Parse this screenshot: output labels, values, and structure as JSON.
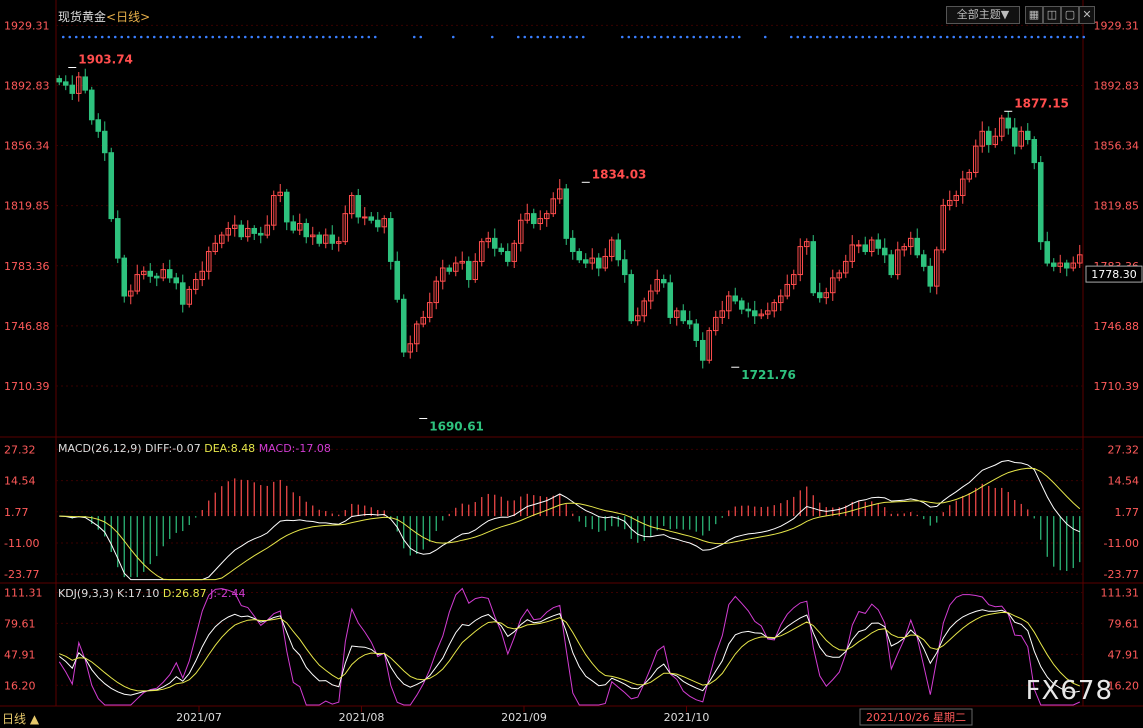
{
  "header": {
    "title": "现货黄金",
    "period": "<日线>"
  },
  "toolbar": {
    "theme_label": "全部主题▼",
    "icons": [
      "grid-icon",
      "chart-icon",
      "expand-icon",
      "close-icon"
    ]
  },
  "colors": {
    "up": "#ff4d4d",
    "down": "#2ec27e",
    "price_axis": "#ff5a5a",
    "dif": "#ffffff",
    "dea": "#e6e64a",
    "macd": "#d23cd2",
    "k": "#ffffff",
    "d": "#e6e64a",
    "j": "#d23cd2",
    "grid": "#3a0000",
    "dots": "#3a7fff"
  },
  "current_price": "1778.30",
  "footer": {
    "tab_label": "日线 ▲",
    "date_label": "2021/10/26 星期二",
    "watermark": "FX678"
  },
  "chart_data": [
    {
      "type": "candlestick",
      "title": "现货黄金<日线>",
      "y_ticks": [
        "1929.31",
        "1892.83",
        "1856.34",
        "1819.85",
        "1783.36",
        "1746.88",
        "1710.39"
      ],
      "ylim": [
        1680,
        1935
      ],
      "x_ticks": [
        "2021/07",
        "2021/08",
        "2021/09",
        "2021/10"
      ],
      "annotations": [
        {
          "label": "1903.74",
          "value": 1903.74,
          "kind": "high"
        },
        {
          "label": "1690.61",
          "value": 1690.61,
          "kind": "low"
        },
        {
          "label": "1834.03",
          "value": 1834.03,
          "kind": "high"
        },
        {
          "label": "1721.76",
          "value": 1721.76,
          "kind": "low"
        },
        {
          "label": "1877.15",
          "value": 1877.15,
          "kind": "high"
        }
      ],
      "close": [
        1895,
        1893,
        1888,
        1898,
        1890,
        1872,
        1865,
        1852,
        1812,
        1788,
        1765,
        1768,
        1778,
        1780,
        1777,
        1776,
        1781,
        1776,
        1773,
        1760,
        1769,
        1775,
        1780,
        1792,
        1797,
        1802,
        1806,
        1808,
        1801,
        1806,
        1803,
        1802,
        1808,
        1826,
        1828,
        1810,
        1805,
        1809,
        1801,
        1802,
        1797,
        1802,
        1797,
        1798,
        1815,
        1826,
        1813,
        1813,
        1811,
        1807,
        1812,
        1786,
        1763,
        1731,
        1736,
        1748,
        1752,
        1761,
        1774,
        1782,
        1780,
        1785,
        1786,
        1775,
        1786,
        1798,
        1800,
        1794,
        1792,
        1786,
        1797,
        1811,
        1815,
        1809,
        1812,
        1815,
        1824,
        1830,
        1800,
        1792,
        1787,
        1785,
        1788,
        1782,
        1789,
        1799,
        1787,
        1778,
        1750,
        1753,
        1762,
        1768,
        1775,
        1773,
        1752,
        1756,
        1750,
        1748,
        1738,
        1726,
        1744,
        1752,
        1756,
        1765,
        1762,
        1757,
        1756,
        1753,
        1754,
        1756,
        1761,
        1765,
        1772,
        1778,
        1795,
        1798,
        1767,
        1764,
        1767,
        1776,
        1779,
        1786,
        1796,
        1796,
        1792,
        1799,
        1794,
        1790,
        1778,
        1793,
        1795,
        1800,
        1790,
        1783,
        1771,
        1793,
        1820,
        1823,
        1826,
        1836,
        1840,
        1856,
        1865,
        1857,
        1862,
        1873,
        1867,
        1856,
        1865,
        1860,
        1846,
        1798,
        1785,
        1783,
        1785,
        1782,
        1785,
        1790
      ],
      "open": [
        1897,
        1895,
        1893,
        1888,
        1898,
        1890,
        1872,
        1865,
        1852,
        1812,
        1788,
        1765,
        1768,
        1778,
        1780,
        1777,
        1776,
        1781,
        1776,
        1773,
        1760,
        1769,
        1775,
        1780,
        1792,
        1797,
        1802,
        1806,
        1808,
        1801,
        1806,
        1803,
        1802,
        1808,
        1826,
        1828,
        1810,
        1805,
        1809,
        1801,
        1802,
        1797,
        1802,
        1797,
        1798,
        1815,
        1826,
        1813,
        1813,
        1811,
        1807,
        1812,
        1786,
        1763,
        1731,
        1736,
        1748,
        1752,
        1761,
        1774,
        1782,
        1780,
        1785,
        1786,
        1775,
        1786,
        1798,
        1800,
        1794,
        1792,
        1786,
        1797,
        1811,
        1815,
        1809,
        1812,
        1815,
        1824,
        1830,
        1800,
        1792,
        1787,
        1785,
        1788,
        1782,
        1789,
        1799,
        1787,
        1778,
        1750,
        1753,
        1762,
        1768,
        1775,
        1773,
        1752,
        1756,
        1750,
        1748,
        1738,
        1726,
        1744,
        1752,
        1756,
        1765,
        1762,
        1757,
        1756,
        1753,
        1754,
        1756,
        1761,
        1765,
        1772,
        1778,
        1795,
        1798,
        1767,
        1764,
        1767,
        1776,
        1779,
        1786,
        1796,
        1796,
        1792,
        1799,
        1794,
        1790,
        1778,
        1793,
        1795,
        1800,
        1790,
        1783,
        1771,
        1793,
        1820,
        1823,
        1826,
        1836,
        1840,
        1856,
        1865,
        1857,
        1862,
        1873,
        1867,
        1856,
        1865,
        1860,
        1846,
        1798,
        1785,
        1783,
        1785,
        1782,
        1785
      ]
    },
    {
      "type": "line",
      "title": "MACD(26,12,9)",
      "series_labels": {
        "dif": "DIFF:-0.07",
        "dea": "DEA:8.48",
        "macd": "MACD:-17.08"
      },
      "y_ticks": [
        "27.32",
        "14.54",
        "1.77",
        "-11.00",
        "-23.77"
      ],
      "ylim": [
        -27,
        32
      ]
    },
    {
      "type": "line",
      "title": "KDJ(9,3,3)",
      "series_labels": {
        "k": "K:17.10",
        "d": "D:26.87",
        "j": "J:-2.44"
      },
      "y_ticks": [
        "111.31",
        "79.61",
        "47.91",
        "16.20"
      ],
      "ylim": [
        -5,
        120
      ]
    }
  ]
}
